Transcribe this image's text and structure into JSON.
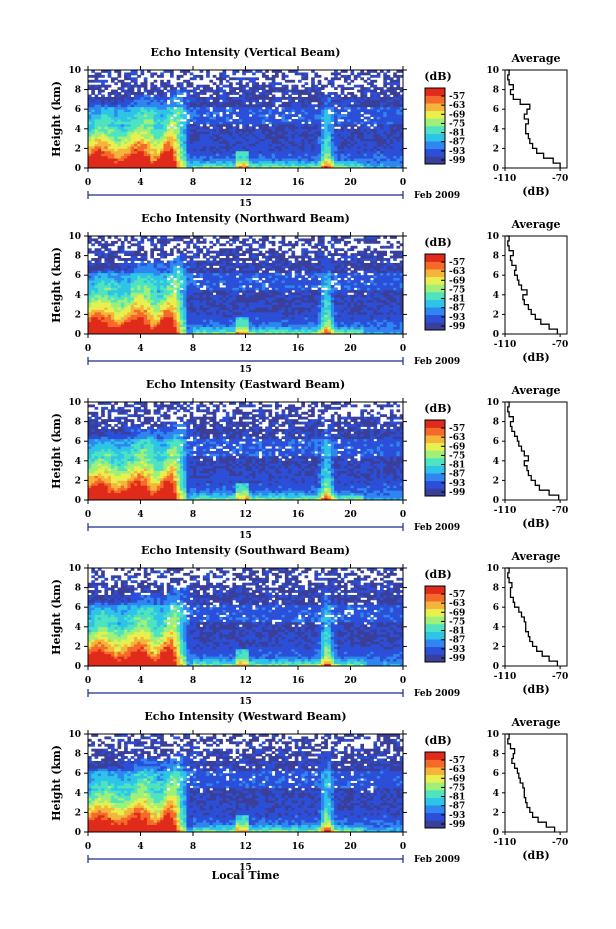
{
  "figure": {
    "x_axis_label": "Local Time",
    "date_label": "Feb 2009",
    "day_label": "15",
    "colorbar_unit": "(dB)",
    "colorbar_ticks": [
      "-57",
      "-63",
      "-69",
      "-75",
      "-81",
      "-87",
      "-93",
      "-99"
    ],
    "colormap": [
      "#3a3f9a",
      "#2b4fd8",
      "#2f86f0",
      "#2ec4e8",
      "#4fe3c0",
      "#9ef07a",
      "#e8f050",
      "#f5b43a",
      "#f56a2a",
      "#e02a1a"
    ],
    "average_title": "Average",
    "average_xlabel": "(dB)",
    "average_xticks": [
      "-110",
      "-70"
    ]
  },
  "chart_data": [
    {
      "type": "heatmap",
      "title": "Echo Intensity (Vertical Beam)",
      "xlabel": "Local Time",
      "ylabel": "Height (km)",
      "x_ticks": [
        "0",
        "4",
        "8",
        "12",
        "16",
        "20",
        "0"
      ],
      "y_ticks": [
        "0",
        "2",
        "4",
        "6",
        "8",
        "10"
      ],
      "xlim": [
        0,
        24
      ],
      "ylim": [
        0,
        10
      ],
      "colorbar": {
        "label": "(dB)",
        "ticks": [
          -57,
          -63,
          -69,
          -75,
          -81,
          -87,
          -93,
          -99
        ]
      },
      "average_profile": {
        "title": "Average",
        "xlabel": "(dB)",
        "xlim": [
          -110,
          -65
        ],
        "ylim": [
          0,
          10
        ],
        "height_km": [
          0,
          0.5,
          1,
          1.5,
          2,
          2.5,
          3,
          3.5,
          4,
          4.5,
          5,
          5.5,
          6,
          6.5,
          7,
          7.5,
          8,
          8.5,
          9,
          9.5,
          10
        ],
        "value_db": [
          -70,
          -75,
          -82,
          -87,
          -90,
          -92,
          -93,
          -95,
          -95,
          -93,
          -96,
          -94,
          -92,
          -99,
          -104,
          -106,
          -104,
          -107,
          -108,
          -107,
          -109
        ]
      }
    },
    {
      "type": "heatmap",
      "title": "Echo Intensity (Northward Beam)",
      "xlabel": "Local Time",
      "ylabel": "Height (km)",
      "x_ticks": [
        "0",
        "4",
        "8",
        "12",
        "16",
        "20",
        "0"
      ],
      "y_ticks": [
        "0",
        "2",
        "4",
        "6",
        "8",
        "10"
      ],
      "xlim": [
        0,
        24
      ],
      "ylim": [
        0,
        10
      ],
      "colorbar": {
        "label": "(dB)",
        "ticks": [
          -57,
          -63,
          -69,
          -75,
          -81,
          -87,
          -93,
          -99
        ]
      },
      "average_profile": {
        "title": "Average",
        "xlabel": "(dB)",
        "xlim": [
          -110,
          -65
        ],
        "ylim": [
          0,
          10
        ],
        "height_km": [
          0,
          0.5,
          1,
          1.5,
          2,
          2.5,
          3,
          3.5,
          4,
          4.5,
          5,
          5.5,
          6,
          6.5,
          7,
          7.5,
          8,
          8.5,
          9,
          9.5,
          10
        ],
        "value_db": [
          -72,
          -78,
          -84,
          -88,
          -91,
          -93,
          -96,
          -97,
          -94,
          -98,
          -100,
          -101,
          -103,
          -102,
          -105,
          -106,
          -104,
          -107,
          -108,
          -107,
          -109
        ]
      }
    },
    {
      "type": "heatmap",
      "title": "Echo Intensity (Eastward Beam)",
      "xlabel": "Local Time",
      "ylabel": "Height (km)",
      "x_ticks": [
        "0",
        "4",
        "8",
        "12",
        "16",
        "20",
        "0"
      ],
      "y_ticks": [
        "0",
        "2",
        "4",
        "6",
        "8",
        "10"
      ],
      "xlim": [
        0,
        24
      ],
      "ylim": [
        0,
        10
      ],
      "colorbar": {
        "label": "(dB)",
        "ticks": [
          -57,
          -63,
          -69,
          -75,
          -81,
          -87,
          -93,
          -99
        ]
      },
      "average_profile": {
        "title": "Average",
        "xlabel": "(dB)",
        "xlim": [
          -110,
          -65
        ],
        "ylim": [
          0,
          10
        ],
        "height_km": [
          0,
          0.5,
          1,
          1.5,
          2,
          2.5,
          3,
          3.5,
          4,
          4.5,
          5,
          5.5,
          6,
          6.5,
          7,
          7.5,
          8,
          8.5,
          9,
          9.5,
          10
        ],
        "value_db": [
          -71,
          -78,
          -85,
          -88,
          -91,
          -93,
          -94,
          -96,
          -93,
          -96,
          -98,
          -100,
          -101,
          -103,
          -105,
          -106,
          -104,
          -107,
          -108,
          -107,
          -109
        ]
      }
    },
    {
      "type": "heatmap",
      "title": "Echo Intensity (Southward Beam)",
      "xlabel": "Local Time",
      "ylabel": "Height (km)",
      "x_ticks": [
        "0",
        "4",
        "8",
        "12",
        "16",
        "20",
        "0"
      ],
      "y_ticks": [
        "0",
        "2",
        "4",
        "6",
        "8",
        "10"
      ],
      "xlim": [
        0,
        24
      ],
      "ylim": [
        0,
        10
      ],
      "colorbar": {
        "label": "(dB)",
        "ticks": [
          -57,
          -63,
          -69,
          -75,
          -81,
          -87,
          -93,
          -99
        ]
      },
      "average_profile": {
        "title": "Average",
        "xlabel": "(dB)",
        "xlim": [
          -110,
          -65
        ],
        "ylim": [
          0,
          10
        ],
        "height_km": [
          0,
          0.5,
          1,
          1.5,
          2,
          2.5,
          3,
          3.5,
          4,
          4.5,
          5,
          5.5,
          6,
          6.5,
          7,
          7.5,
          8,
          8.5,
          9,
          9.5,
          10
        ],
        "value_db": [
          -72,
          -78,
          -83,
          -87,
          -90,
          -92,
          -93,
          -95,
          -95,
          -96,
          -98,
          -100,
          -103,
          -104,
          -106,
          -106,
          -105,
          -107,
          -108,
          -107,
          -109
        ]
      }
    },
    {
      "type": "heatmap",
      "title": "Echo Intensity (Westward Beam)",
      "xlabel": "Local Time",
      "ylabel": "Height (km)",
      "x_ticks": [
        "0",
        "4",
        "8",
        "12",
        "16",
        "20",
        "0"
      ],
      "y_ticks": [
        "0",
        "2",
        "4",
        "6",
        "8",
        "10"
      ],
      "xlim": [
        0,
        24
      ],
      "ylim": [
        0,
        10
      ],
      "colorbar": {
        "label": "(dB)",
        "ticks": [
          -57,
          -63,
          -69,
          -75,
          -81,
          -87,
          -93,
          -99
        ]
      },
      "average_profile": {
        "title": "Average",
        "xlabel": "(dB)",
        "xlim": [
          -110,
          -65
        ],
        "ylim": [
          0,
          10
        ],
        "height_km": [
          0,
          0.5,
          1,
          1.5,
          2,
          2.5,
          3,
          3.5,
          4,
          4.5,
          5,
          5.5,
          6,
          6.5,
          7,
          7.5,
          8,
          8.5,
          9,
          9.5,
          10
        ],
        "value_db": [
          -74,
          -80,
          -86,
          -90,
          -92,
          -94,
          -95,
          -96,
          -96,
          -97,
          -99,
          -100,
          -101,
          -103,
          -105,
          -104,
          -103,
          -106,
          -108,
          -107,
          -109
        ]
      }
    }
  ]
}
